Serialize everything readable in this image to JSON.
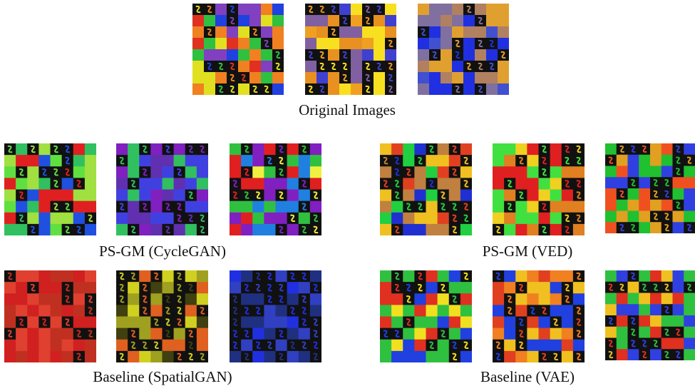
{
  "figure": {
    "captions": [
      "Original Images",
      "PS-GM (CycleGAN)",
      "PS-GM (VED)",
      "Baseline (SpatialGAN)",
      "Baseline (VAE)"
    ]
  }
}
